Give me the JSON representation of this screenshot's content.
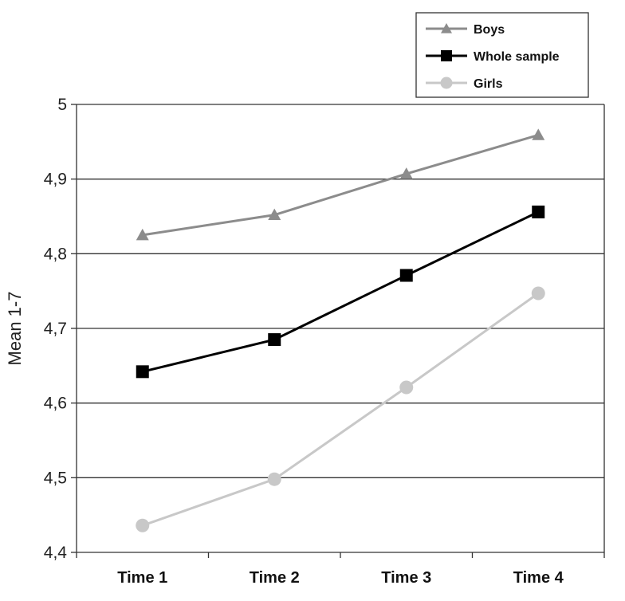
{
  "chart_data": {
    "type": "line",
    "title": "",
    "xlabel": "",
    "ylabel": "Mean 1-7",
    "categories": [
      "Time 1",
      "Time 2",
      "Time 3",
      "Time 4"
    ],
    "y_ticks": [
      "4,4",
      "4,5",
      "4,6",
      "4,7",
      "4,8",
      "4,9",
      "5"
    ],
    "ylim": [
      4.4,
      5.0
    ],
    "grid": "horizontal",
    "legend_position": "top-right",
    "series": [
      {
        "name": "Boys",
        "values": [
          4.825,
          4.852,
          4.907,
          4.959
        ],
        "marker": "triangle",
        "color": "#8c8c8c"
      },
      {
        "name": "Whole sample",
        "values": [
          4.642,
          4.685,
          4.771,
          4.856
        ],
        "marker": "square",
        "color": "#000000"
      },
      {
        "name": "Girls",
        "values": [
          4.436,
          4.498,
          4.621,
          4.747
        ],
        "marker": "circle",
        "color": "#c8c8c8"
      }
    ]
  }
}
